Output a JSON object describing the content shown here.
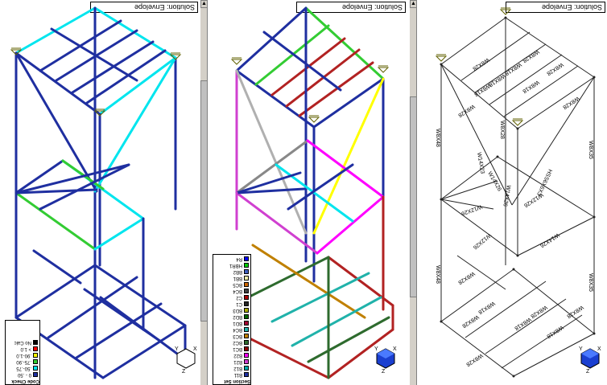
{
  "panes": {
    "left": {
      "title": "Solution: Envelope"
    },
    "middle": {
      "title": "Solution: Envelope"
    },
    "right": {
      "title": "Solution: Envelope"
    }
  },
  "left_legend": {
    "title": "Code Check",
    "items": [
      {
        "label": "0 - .50",
        "color": "#1f2fa0"
      },
      {
        "label": ".50-.75",
        "color": "#00e5ee"
      },
      {
        "label": ".75-.90",
        "color": "#33cc33"
      },
      {
        "label": ".90-1.0",
        "color": "#ffff00"
      },
      {
        "label": "> 1.0",
        "color": "#ff0000"
      },
      {
        "label": "No Calc",
        "color": "#000000"
      }
    ]
  },
  "middle_legend": {
    "title": "Section Set",
    "items": [
      {
        "label": "B11",
        "color": "#1f2fa0"
      },
      {
        "label": "B12",
        "color": "#00aaaa"
      },
      {
        "label": "B21",
        "color": "#d040d0"
      },
      {
        "label": "B22",
        "color": "#ff00ff"
      },
      {
        "label": "BC1",
        "color": "#8b0000"
      },
      {
        "label": "BC2",
        "color": "#2e6b2e"
      },
      {
        "label": "BC3",
        "color": "#c08000"
      },
      {
        "label": "BC4",
        "color": "#20b2aa"
      },
      {
        "label": "BD1",
        "color": "#a00030"
      },
      {
        "label": "BD2",
        "color": "#006400"
      },
      {
        "label": "BD3",
        "color": "#aaaa00"
      },
      {
        "label": "C1",
        "color": "#222222"
      },
      {
        "label": "C2",
        "color": "#aa0000"
      },
      {
        "label": "BC4",
        "color": "#404040"
      },
      {
        "label": "BC5",
        "color": "#cc6600"
      },
      {
        "label": "BB1",
        "color": "#eeeeaa"
      },
      {
        "label": "BB2",
        "color": "#4060c0"
      },
      {
        "label": "HBR1",
        "color": "#00cc00"
      },
      {
        "label": "R4",
        "color": "#0000ff"
      }
    ]
  },
  "axis": {
    "x": "X",
    "y": "Y",
    "z": "Z"
  },
  "members_right": {
    "top_labels": [
      "W8X28",
      "W8X18",
      "W8X18",
      "W8X18",
      "W8X18",
      "W8X28",
      "W8X28",
      "W8X28",
      "W8X28"
    ],
    "column_labels": [
      "W8X48",
      "W8X35",
      "W8X48",
      "W8X35",
      "W8X28"
    ],
    "brace_labels": [
      "HSS6X6X3",
      "W12X26",
      "W14X26",
      "W12X26",
      "W14X26",
      "W12X26",
      "W14X26",
      "W14X23"
    ],
    "bottom_labels": [
      "W8X28",
      "W8X18",
      "W8X18",
      "W8X28",
      "W8X18",
      "W8X28",
      "W8X28",
      "W8X28"
    ]
  }
}
